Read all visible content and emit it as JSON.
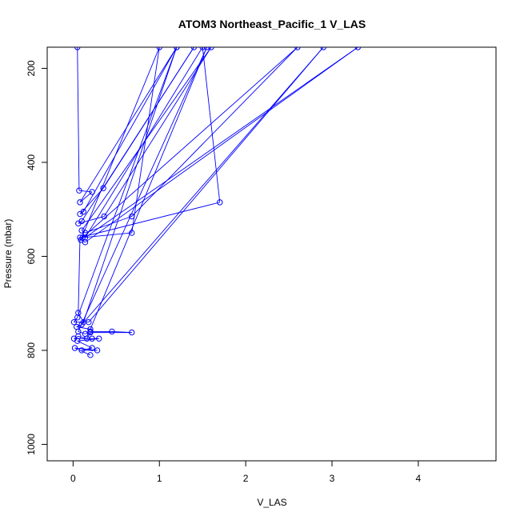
{
  "chart_data": {
    "type": "scatter",
    "title": "ATOM3 Northeast_Pacific_1 V_LAS",
    "xlabel": "V_LAS",
    "ylabel": "Pressure (mbar)",
    "xlim": [
      -0.3,
      4.9
    ],
    "ylim": [
      1035,
      155
    ],
    "y_reversed": true,
    "xticks": [
      0,
      1,
      2,
      3,
      4
    ],
    "yticks": [
      200,
      400,
      600,
      800,
      1000
    ],
    "grid": false,
    "legend": "none",
    "color": "#0000ff",
    "series": [
      {
        "mode": "lines+markers",
        "points": [
          [
            0.05,
            155
          ],
          [
            0.07,
            460
          ],
          [
            0.22,
            463
          ],
          [
            0.08,
            485
          ],
          [
            1.2,
            155
          ],
          [
            0.12,
            505
          ],
          [
            0.08,
            510
          ],
          [
            0.35,
            455
          ],
          [
            1.4,
            155
          ],
          [
            0.1,
            525
          ],
          [
            0.06,
            530
          ],
          [
            0.36,
            515
          ],
          [
            1.6,
            155
          ],
          [
            0.1,
            545
          ],
          [
            0.14,
            550
          ],
          [
            0.68,
            515
          ],
          [
            2.6,
            155
          ],
          [
            0.11,
            560
          ],
          [
            0.68,
            550
          ],
          [
            1.0,
            155
          ],
          [
            0.09,
            565
          ],
          [
            0.14,
            570
          ],
          [
            3.3,
            155
          ],
          [
            0.14,
            560
          ],
          [
            1.5,
            155
          ],
          [
            1.7,
            485
          ],
          [
            0.08,
            560
          ],
          [
            0.06,
            720
          ],
          [
            0.12,
            740
          ],
          [
            1.2,
            155
          ],
          [
            0.05,
            730
          ],
          [
            0.01,
            740
          ],
          [
            0.18,
            740
          ],
          [
            2.9,
            155
          ],
          [
            0.1,
            745
          ],
          [
            0.04,
            750
          ],
          [
            0.2,
            755
          ],
          [
            1.55,
            155
          ],
          [
            0.06,
            760
          ],
          [
            0.14,
            765
          ],
          [
            0.2,
            760
          ],
          [
            0.45,
            760
          ],
          [
            0.68,
            762
          ],
          [
            0.2,
            762
          ],
          [
            0.16,
            775
          ],
          [
            0.06,
            770
          ],
          [
            0.01,
            775
          ],
          [
            0.22,
            775
          ],
          [
            0.3,
            775
          ],
          [
            0.05,
            780
          ],
          [
            0.22,
            795
          ],
          [
            0.1,
            800
          ],
          [
            0.28,
            800
          ],
          [
            0.02,
            795
          ],
          [
            0.2,
            810
          ]
        ]
      }
    ]
  }
}
